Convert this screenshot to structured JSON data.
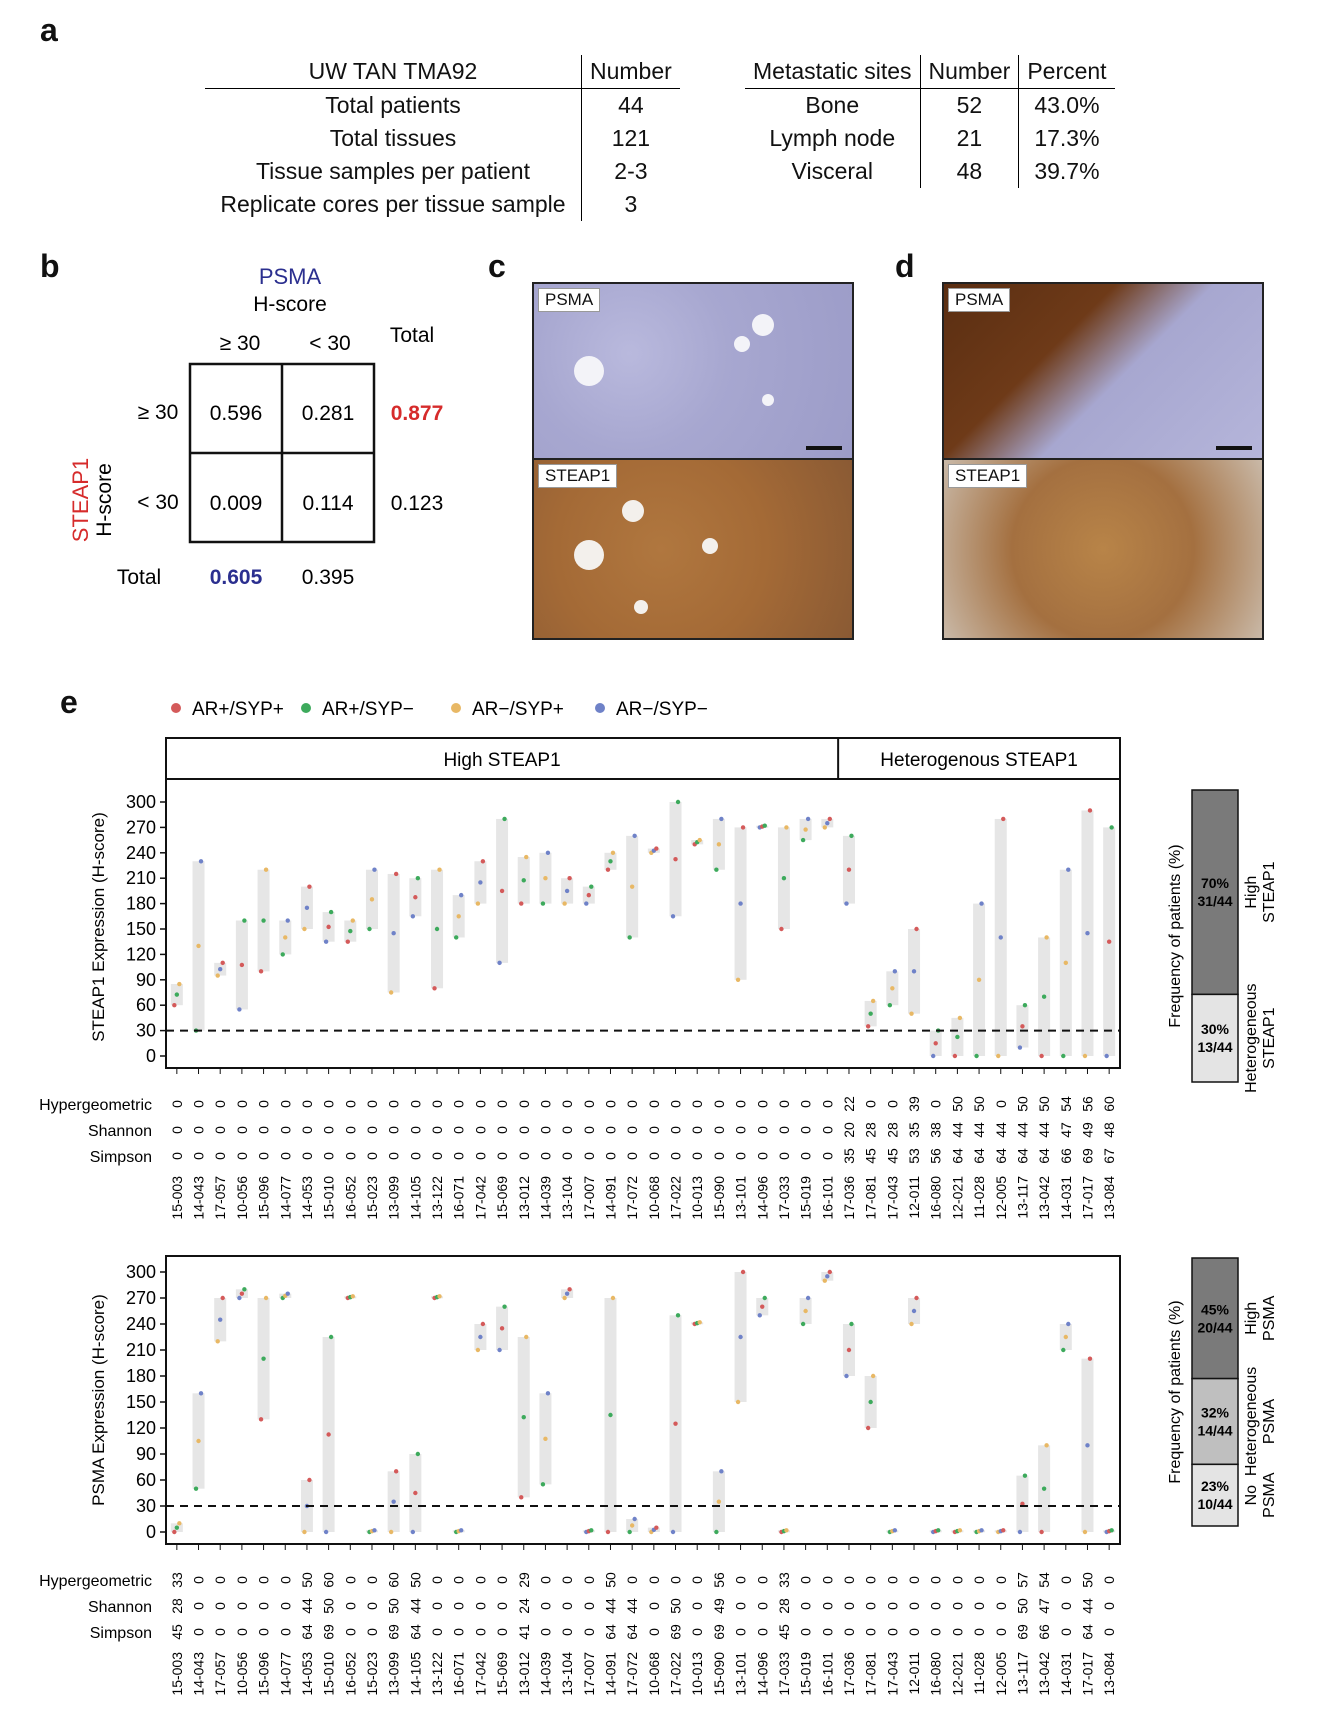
{
  "panel_a": {
    "letter": "a",
    "left_table": {
      "header": [
        "UW TAN TMA92",
        "Number"
      ],
      "rows": [
        [
          "Total patients",
          "44"
        ],
        [
          "Total tissues",
          "121"
        ],
        [
          "Tissue samples per patient",
          "2-3"
        ],
        [
          "Replicate cores per tissue sample",
          "3"
        ]
      ]
    },
    "right_table": {
      "header": [
        "Metastatic sites",
        "Number",
        "Percent"
      ],
      "rows": [
        [
          "Bone",
          "52",
          "43.0%"
        ],
        [
          "Lymph node",
          "21",
          "17.3%"
        ],
        [
          "Visceral",
          "48",
          "39.7%"
        ]
      ]
    }
  },
  "panel_b": {
    "letter": "b",
    "col_title_1": "PSMA",
    "col_title_2": "H-score",
    "col_headers": [
      "≥ 30",
      "< 30"
    ],
    "total_label": "Total",
    "row_title_1": "STEAP1",
    "row_title_2": "H-score",
    "row_headers": [
      "≥ 30",
      "< 30"
    ],
    "cells": [
      [
        "0.596",
        "0.281"
      ],
      [
        "0.009",
        "0.114"
      ]
    ],
    "row_totals": [
      "0.877",
      "0.123"
    ],
    "col_totals": [
      "0.605",
      "0.395"
    ],
    "colors": {
      "psma": "#2b2f8f",
      "steap1": "#d62b2b"
    }
  },
  "panel_c": {
    "letter": "c",
    "top_label": "PSMA",
    "bottom_label": "STEAP1"
  },
  "panel_d": {
    "letter": "d",
    "top_label": "PSMA",
    "bottom_label": "STEAP1"
  },
  "panel_e": {
    "letter": "e",
    "legend": [
      {
        "label": "AR+/SYP+",
        "color": "#d45a5a"
      },
      {
        "label": "AR+/SYP−",
        "color": "#3daa5c"
      },
      {
        "label": "AR−/SYP+",
        "color": "#e8b865"
      },
      {
        "label": "AR−/SYP−",
        "color": "#6f82c8"
      }
    ],
    "groups": [
      "High STEAP1",
      "Heterogenous STEAP1"
    ],
    "metric_labels": [
      "Hypergeometric",
      "Shannon",
      "Simpson"
    ],
    "patients": [
      "15-003",
      "14-043",
      "17-057",
      "10-056",
      "15-096",
      "14-077",
      "14-053",
      "15-010",
      "16-052",
      "15-023",
      "13-099",
      "14-105",
      "13-122",
      "16-071",
      "17-042",
      "15-069",
      "13-012",
      "14-039",
      "13-104",
      "17-007",
      "14-091",
      "17-072",
      "10-068",
      "17-022",
      "10-013",
      "15-090",
      "13-101",
      "14-096",
      "17-033",
      "15-019",
      "16-101",
      "17-036",
      "17-081",
      "17-043",
      "12-011",
      "16-080",
      "12-021",
      "11-028",
      "12-005",
      "13-117",
      "13-042",
      "14-031",
      "17-017",
      "13-084"
    ],
    "patients_bottom": [
      "15-003",
      "14-043",
      "17-057",
      "10-056",
      "15-096",
      "14-077",
      "14-053",
      "15-010",
      "16-052",
      "15-023",
      "13-099",
      "14-105",
      "13-122",
      "16-071",
      "17-042",
      "15-069",
      "13-012",
      "14-039",
      "13-104",
      "17-007",
      "14-091",
      "17-072",
      "10-068",
      "17-022",
      "10-013",
      "15-090",
      "13-101",
      "14-096",
      "17-033",
      "15-019",
      "16-101",
      "17-036",
      "17-081",
      "17-043",
      "12-011",
      "16-080",
      "12-021",
      "11-028",
      "12-005",
      "13-117",
      "13-042",
      "14-031",
      "17-017",
      "13-084"
    ],
    "top_metrics": {
      "hypergeometric": [
        "0",
        "0",
        "0",
        "0",
        "0",
        "0",
        "0",
        "0",
        "0",
        "0",
        "0",
        "0",
        "0",
        "0",
        "0",
        "0",
        "0",
        "0",
        "0",
        "0",
        "0",
        "0",
        "0",
        "0",
        "0",
        "0",
        "0",
        "0",
        "0",
        "0",
        "0",
        "22",
        "0",
        "0",
        "39",
        "0",
        "50",
        "50",
        "0",
        "50",
        "50",
        "54",
        "56",
        "60"
      ],
      "shannon": [
        "0",
        "0",
        "0",
        "0",
        "0",
        "0",
        "0",
        "0",
        "0",
        "0",
        "0",
        "0",
        "0",
        "0",
        "0",
        "0",
        "0",
        "0",
        "0",
        "0",
        "0",
        "0",
        "0",
        "0",
        "0",
        "0",
        "0",
        "0",
        "0",
        "0",
        "0",
        "20",
        "28",
        "28",
        "35",
        "38",
        "44",
        "44",
        "44",
        "44",
        "44",
        "47",
        "49",
        "48"
      ],
      "simpson": [
        "0",
        "0",
        "0",
        "0",
        "0",
        "0",
        "0",
        "0",
        "0",
        "0",
        "0",
        "0",
        "0",
        "0",
        "0",
        "0",
        "0",
        "0",
        "0",
        "0",
        "0",
        "0",
        "0",
        "0",
        "0",
        "0",
        "0",
        "0",
        "0",
        "0",
        "0",
        "35",
        "45",
        "45",
        "53",
        "56",
        "64",
        "64",
        "64",
        "64",
        "64",
        "66",
        "69",
        "67"
      ]
    },
    "bottom_metrics": {
      "hypergeometric": [
        "33",
        "0",
        "0",
        "0",
        "0",
        "0",
        "50",
        "60",
        "0",
        "0",
        "60",
        "50",
        "0",
        "0",
        "0",
        "0",
        "29",
        "0",
        "0",
        "0",
        "50",
        "0",
        "0",
        "0",
        "0",
        "56",
        "0",
        "0",
        "33",
        "0",
        "0",
        "0",
        "0",
        "0",
        "0",
        "0",
        "0",
        "0",
        "0",
        "57",
        "54",
        "0",
        "50",
        "0"
      ],
      "shannon": [
        "28",
        "0",
        "0",
        "0",
        "0",
        "0",
        "44",
        "50",
        "0",
        "0",
        "50",
        "44",
        "0",
        "0",
        "0",
        "0",
        "24",
        "0",
        "0",
        "0",
        "44",
        "44",
        "0",
        "50",
        "0",
        "49",
        "0",
        "0",
        "28",
        "0",
        "0",
        "0",
        "0",
        "0",
        "0",
        "0",
        "0",
        "0",
        "0",
        "50",
        "47",
        "0",
        "44",
        "0"
      ],
      "simpson": [
        "45",
        "0",
        "0",
        "0",
        "0",
        "0",
        "64",
        "69",
        "0",
        "0",
        "69",
        "64",
        "0",
        "0",
        "0",
        "0",
        "41",
        "0",
        "0",
        "0",
        "64",
        "64",
        "0",
        "69",
        "0",
        "69",
        "0",
        "0",
        "45",
        "0",
        "0",
        "0",
        "0",
        "0",
        "0",
        "0",
        "0",
        "0",
        "0",
        "69",
        "66",
        "0",
        "64",
        "0"
      ]
    },
    "top_chart": {
      "ylabel": "STEAP1 Expression (H-score)",
      "yticks": [
        0,
        30,
        60,
        90,
        120,
        150,
        180,
        210,
        240,
        270,
        300
      ],
      "ylim": [
        0,
        300
      ],
      "threshold": 30,
      "ranges": [
        [
          60,
          85
        ],
        [
          30,
          230
        ],
        [
          95,
          110
        ],
        [
          55,
          160
        ],
        [
          100,
          220
        ],
        [
          120,
          160
        ],
        [
          150,
          200
        ],
        [
          135,
          170
        ],
        [
          135,
          160
        ],
        [
          150,
          220
        ],
        [
          75,
          215
        ],
        [
          165,
          210
        ],
        [
          80,
          220
        ],
        [
          140,
          190
        ],
        [
          180,
          230
        ],
        [
          110,
          280
        ],
        [
          180,
          235
        ],
        [
          180,
          240
        ],
        [
          180,
          210
        ],
        [
          180,
          200
        ],
        [
          220,
          240
        ],
        [
          140,
          260
        ],
        [
          240,
          245
        ],
        [
          165,
          300
        ],
        [
          250,
          255
        ],
        [
          220,
          280
        ],
        [
          90,
          270
        ],
        [
          270,
          272
        ],
        [
          150,
          270
        ],
        [
          255,
          280
        ],
        [
          270,
          280
        ],
        [
          180,
          260
        ],
        [
          35,
          65
        ],
        [
          60,
          100
        ],
        [
          50,
          150
        ],
        [
          0,
          30
        ],
        [
          0,
          45
        ],
        [
          0,
          180
        ],
        [
          0,
          280
        ],
        [
          10,
          60
        ],
        [
          0,
          140
        ],
        [
          0,
          220
        ],
        [
          0,
          290
        ],
        [
          0,
          270
        ]
      ]
    },
    "top_freq": {
      "ylabel": "Frequency of patients (%)",
      "segments": [
        {
          "pct": "70%",
          "count": "31/44",
          "label1": "High",
          "label2": "STEAP1",
          "fraction": 0.7,
          "color": "#7a7a7a"
        },
        {
          "pct": "30%",
          "count": "13/44",
          "label1": "Heterogeneous",
          "label2": "STEAP1",
          "fraction": 0.3,
          "color": "#e4e4e4"
        }
      ]
    },
    "bottom_chart": {
      "ylabel": "PSMA Expression (H-score)",
      "yticks": [
        0,
        30,
        60,
        90,
        120,
        150,
        180,
        210,
        240,
        270,
        300
      ],
      "ylim": [
        0,
        300
      ],
      "threshold": 30,
      "ranges": [
        [
          0,
          10
        ],
        [
          50,
          160
        ],
        [
          220,
          270
        ],
        [
          270,
          280
        ],
        [
          130,
          270
        ],
        [
          270,
          275
        ],
        [
          0,
          60
        ],
        [
          0,
          225
        ],
        [
          270,
          272
        ],
        [
          0,
          2
        ],
        [
          0,
          70
        ],
        [
          0,
          90
        ],
        [
          270,
          272
        ],
        [
          0,
          2
        ],
        [
          210,
          240
        ],
        [
          210,
          260
        ],
        [
          40,
          225
        ],
        [
          55,
          160
        ],
        [
          270,
          280
        ],
        [
          0,
          2
        ],
        [
          0,
          270
        ],
        [
          0,
          15
        ],
        [
          0,
          5
        ],
        [
          0,
          250
        ],
        [
          240,
          242
        ],
        [
          0,
          70
        ],
        [
          150,
          300
        ],
        [
          250,
          270
        ],
        [
          0,
          2
        ],
        [
          240,
          270
        ],
        [
          290,
          300
        ],
        [
          180,
          240
        ],
        [
          120,
          180
        ],
        [
          0,
          2
        ],
        [
          240,
          270
        ],
        [
          0,
          2
        ],
        [
          0,
          2
        ],
        [
          0,
          2
        ],
        [
          0,
          2
        ],
        [
          0,
          65
        ],
        [
          0,
          100
        ],
        [
          210,
          240
        ],
        [
          0,
          200
        ],
        [
          0,
          2
        ]
      ]
    },
    "bottom_freq": {
      "ylabel": "Frequency of patients (%)",
      "segments": [
        {
          "pct": "45%",
          "count": "20/44",
          "label1": "High",
          "label2": "PSMA",
          "fraction": 0.45,
          "color": "#7a7a7a"
        },
        {
          "pct": "32%",
          "count": "14/44",
          "label1": "Heterogeneous",
          "label2": "PSMA",
          "fraction": 0.32,
          "color": "#bfbfbf"
        },
        {
          "pct": "23%",
          "count": "10/44",
          "label1": "No",
          "label2": "PSMA",
          "fraction": 0.23,
          "color": "#e4e4e4"
        }
      ]
    }
  }
}
